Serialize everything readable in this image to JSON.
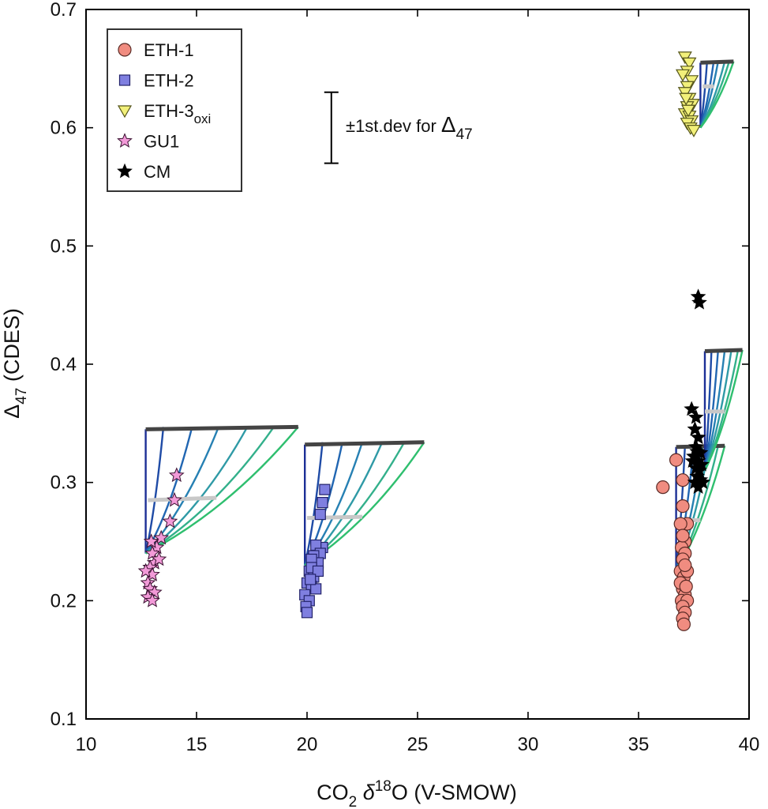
{
  "chart_data": {
    "type": "scatter",
    "xlabel": {
      "main": "CO",
      "sub": "2",
      "delta": " δ",
      "sup": "18",
      "rest": "O (V-SMOW)"
    },
    "ylabel": {
      "main": "Δ",
      "sub": "47",
      "rest": " (CDES)"
    },
    "xlim": [
      10,
      40
    ],
    "ylim": [
      0.1,
      0.7
    ],
    "xticks": [
      10,
      15,
      20,
      25,
      30,
      35,
      40
    ],
    "xtick_labels": [
      "10",
      "15",
      "20",
      "25",
      "30",
      "35",
      "40"
    ],
    "yticks": [
      0.1,
      0.2,
      0.3,
      0.4,
      0.5,
      0.6,
      0.7
    ],
    "ytick_labels": [
      "0.1",
      "0.2",
      "0.3",
      "0.4",
      "0.5",
      "0.6",
      "0.7"
    ],
    "legend": {
      "position": "top-left",
      "entries": [
        {
          "label": "ETH-1",
          "sub": "",
          "marker": "circle",
          "color": "#f08c80"
        },
        {
          "label": "ETH-2",
          "sub": "",
          "marker": "square",
          "color": "#7f7fe0"
        },
        {
          "label": "ETH-3",
          "sub": "oxi",
          "marker": "triangle-down",
          "color": "#f2f07a"
        },
        {
          "label": "GU1",
          "sub": "",
          "marker": "star",
          "color": "#f29ad8"
        },
        {
          "label": "CM",
          "sub": "",
          "marker": "star",
          "color": "#000000"
        }
      ]
    },
    "annotation": {
      "text": "±1st.dev for ",
      "symbol": "Δ",
      "sub": "47",
      "x": 21.1,
      "y_low": 0.57,
      "y_high": 0.63
    },
    "series": [
      {
        "name": "ETH-1",
        "marker": "circle",
        "color": "#f08c80",
        "points": [
          [
            36.1,
            0.296
          ],
          [
            36.7,
            0.319
          ],
          [
            37.0,
            0.302
          ],
          [
            37.0,
            0.28
          ],
          [
            37.2,
            0.265
          ],
          [
            36.9,
            0.265
          ],
          [
            37.1,
            0.25
          ],
          [
            36.95,
            0.245
          ],
          [
            37.1,
            0.24
          ],
          [
            37.0,
            0.235
          ],
          [
            36.9,
            0.225
          ],
          [
            37.05,
            0.22
          ],
          [
            37.2,
            0.225
          ],
          [
            37.0,
            0.21
          ],
          [
            37.1,
            0.205
          ],
          [
            36.95,
            0.2
          ],
          [
            37.2,
            0.2
          ],
          [
            37.0,
            0.195
          ],
          [
            37.1,
            0.19
          ],
          [
            37.0,
            0.185
          ],
          [
            37.05,
            0.18
          ],
          [
            36.9,
            0.215
          ],
          [
            37.15,
            0.212
          ],
          [
            37.1,
            0.23
          ],
          [
            37.0,
            0.255
          ]
        ]
      },
      {
        "name": "ETH-2",
        "marker": "square",
        "color": "#7f7fe0",
        "points": [
          [
            20.8,
            0.294
          ],
          [
            20.7,
            0.283
          ],
          [
            20.6,
            0.273
          ],
          [
            20.7,
            0.245
          ],
          [
            20.4,
            0.247
          ],
          [
            20.6,
            0.24
          ],
          [
            20.3,
            0.238
          ],
          [
            20.5,
            0.232
          ],
          [
            20.2,
            0.235
          ],
          [
            20.1,
            0.225
          ],
          [
            20.3,
            0.22
          ],
          [
            20.0,
            0.215
          ],
          [
            20.2,
            0.212
          ],
          [
            20.4,
            0.21
          ],
          [
            19.9,
            0.205
          ],
          [
            20.1,
            0.2
          ],
          [
            19.95,
            0.195
          ],
          [
            20.0,
            0.19
          ],
          [
            20.2,
            0.228
          ],
          [
            20.5,
            0.225
          ],
          [
            20.15,
            0.218
          ]
        ]
      },
      {
        "name": "ETH-3oxi",
        "marker": "triangle-down",
        "color": "#f2f07a",
        "points": [
          [
            37.1,
            0.66
          ],
          [
            37.3,
            0.655
          ],
          [
            37.2,
            0.648
          ],
          [
            37.0,
            0.645
          ],
          [
            37.4,
            0.64
          ],
          [
            37.2,
            0.635
          ],
          [
            37.1,
            0.63
          ],
          [
            37.3,
            0.625
          ],
          [
            37.45,
            0.62
          ],
          [
            37.2,
            0.618
          ],
          [
            37.1,
            0.612
          ],
          [
            37.3,
            0.61
          ],
          [
            37.4,
            0.606
          ],
          [
            37.2,
            0.604
          ],
          [
            37.35,
            0.6
          ],
          [
            37.5,
            0.598
          ],
          [
            37.25,
            0.615
          ],
          [
            37.15,
            0.625
          ]
        ]
      },
      {
        "name": "GU1",
        "marker": "star",
        "color": "#f29ad8",
        "points": [
          [
            14.1,
            0.306
          ],
          [
            14.0,
            0.285
          ],
          [
            13.8,
            0.267
          ],
          [
            13.4,
            0.253
          ],
          [
            13.2,
            0.245
          ],
          [
            13.0,
            0.24
          ],
          [
            13.1,
            0.232
          ],
          [
            12.9,
            0.228
          ],
          [
            13.0,
            0.222
          ],
          [
            12.8,
            0.215
          ],
          [
            12.9,
            0.21
          ],
          [
            13.1,
            0.207
          ],
          [
            12.8,
            0.203
          ],
          [
            13.0,
            0.2
          ],
          [
            12.7,
            0.225
          ],
          [
            13.3,
            0.235
          ],
          [
            12.95,
            0.25
          ]
        ]
      },
      {
        "name": "CM",
        "marker": "star",
        "color": "#000000",
        "points": [
          [
            37.7,
            0.457
          ],
          [
            37.75,
            0.452
          ],
          [
            37.4,
            0.362
          ],
          [
            37.6,
            0.355
          ],
          [
            37.55,
            0.345
          ],
          [
            37.7,
            0.338
          ],
          [
            37.6,
            0.33
          ],
          [
            37.8,
            0.325
          ],
          [
            37.5,
            0.322
          ],
          [
            37.7,
            0.318
          ],
          [
            37.85,
            0.315
          ],
          [
            37.6,
            0.312
          ],
          [
            37.75,
            0.31
          ],
          [
            37.65,
            0.305
          ],
          [
            37.8,
            0.302
          ],
          [
            37.55,
            0.3
          ],
          [
            37.7,
            0.296
          ],
          [
            37.9,
            0.3
          ],
          [
            37.45,
            0.318
          ],
          [
            37.65,
            0.326
          ]
        ]
      }
    ],
    "fans": [
      {
        "x0": 12.7,
        "y_top": 0.345,
        "x_top_end": 19.6,
        "y_top_end": 0.347,
        "y_base": 0.24,
        "x_end": [
          12.7,
          13.5,
          14.8,
          16.0,
          17.3,
          18.5,
          19.6
        ],
        "y_end": 0.347,
        "mid": [
          12.8,
          0.285,
          15.9,
          0.287
        ]
      },
      {
        "x0": 19.9,
        "y_top": 0.332,
        "x_top_end": 25.3,
        "y_top_end": 0.334,
        "y_base": 0.23,
        "x_end": [
          19.9,
          20.7,
          21.6,
          22.5,
          23.4,
          24.4,
          25.3
        ],
        "y_end": 0.334,
        "mid": [
          20.0,
          0.27,
          22.5,
          0.271
        ]
      },
      {
        "x0": 36.7,
        "y_top": 0.33,
        "x_top_end": 38.9,
        "y_top_end": 0.331,
        "y_base": 0.225,
        "x_end": [
          36.7,
          37.1,
          37.5,
          37.9,
          38.2,
          38.6,
          38.9
        ],
        "y_end": 0.331,
        "mid": [
          36.8,
          0.268,
          37.8,
          0.268
        ]
      },
      {
        "x0": 38.0,
        "y_top": 0.411,
        "x_top_end": 39.7,
        "y_top_end": 0.412,
        "y_base": 0.31,
        "x_end": [
          38.0,
          38.3,
          38.6,
          38.9,
          39.2,
          39.5,
          39.7
        ],
        "y_end": 0.412,
        "mid": [
          38.0,
          0.36,
          38.9,
          0.36
        ]
      },
      {
        "x0": 37.8,
        "y_top": 0.655,
        "x_top_end": 39.3,
        "y_top_end": 0.656,
        "y_base": 0.6,
        "x_end": [
          37.8,
          38.1,
          38.4,
          38.6,
          38.9,
          39.1,
          39.3
        ],
        "y_end": 0.656,
        "mid": [
          37.9,
          0.635,
          38.4,
          0.635
        ]
      }
    ],
    "fan_colors": [
      "#1c2f96",
      "#1f4ba6",
      "#2166b2",
      "#2680b3",
      "#2f9aa6",
      "#33b08b",
      "#2fbf6f"
    ],
    "top_line_color": "#444444",
    "mid_line_color": "#c8c8c8"
  }
}
